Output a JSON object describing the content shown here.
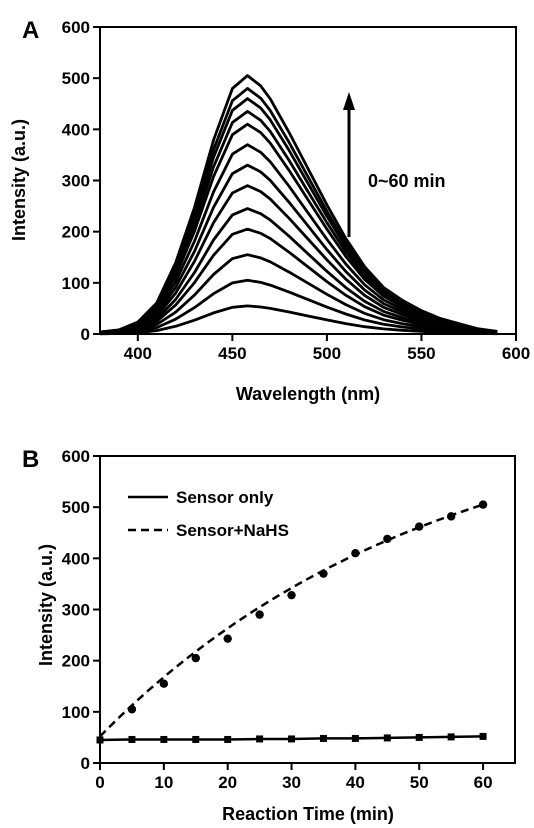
{
  "chart_data": [
    {
      "panel": "A",
      "type": "line",
      "xlabel": "Wavelength (nm)",
      "ylabel": "Intensity (a.u.)",
      "xlim": [
        380,
        600
      ],
      "ylim": [
        0,
        600
      ],
      "xticks": [
        400,
        450,
        500,
        550,
        600
      ],
      "yticks": [
        0,
        100,
        200,
        300,
        400,
        500,
        600
      ],
      "annotation": "0~60 min",
      "x": [
        380,
        390,
        400,
        410,
        420,
        430,
        440,
        450,
        458,
        465,
        470,
        480,
        490,
        500,
        510,
        520,
        530,
        540,
        550,
        560,
        570,
        580,
        590
      ],
      "series": [
        {
          "peak": 55,
          "values": [
            0.4,
            0.9,
            2.5,
            6.6,
            15.1,
            27.0,
            41.3,
            52.2,
            55.0,
            52.8,
            50.1,
            42.9,
            35.2,
            27.5,
            20.4,
            14.3,
            9.9,
            7.2,
            5.0,
            3.3,
            2.2,
            1.1,
            0.6
          ]
        },
        {
          "peak": 105,
          "values": [
            0.8,
            1.7,
            4.8,
            12.6,
            28.9,
            51.5,
            78.8,
            99.8,
            105.0,
            100.8,
            95.6,
            81.9,
            67.2,
            52.5,
            39.0,
            27.3,
            18.9,
            13.7,
            9.5,
            6.3,
            4.2,
            2.1,
            1.1
          ]
        },
        {
          "peak": 155,
          "values": [
            1.2,
            2.5,
            7.1,
            18.6,
            42.6,
            76.0,
            116.3,
            147.3,
            155.0,
            148.8,
            141.1,
            120.9,
            99.2,
            77.5,
            57.4,
            40.3,
            27.9,
            20.2,
            14.0,
            9.3,
            6.2,
            3.1,
            1.6
          ]
        },
        {
          "peak": 205,
          "values": [
            1.6,
            3.3,
            9.4,
            24.6,
            56.4,
            100.5,
            153.8,
            194.8,
            205.0,
            196.8,
            186.6,
            159.9,
            131.2,
            102.5,
            75.9,
            53.3,
            36.9,
            26.7,
            18.5,
            12.3,
            8.2,
            4.1,
            2.1
          ]
        },
        {
          "peak": 245,
          "values": [
            2.0,
            3.9,
            11.3,
            29.4,
            67.4,
            120.1,
            183.8,
            232.8,
            245.0,
            235.2,
            223.0,
            191.1,
            156.8,
            122.5,
            90.7,
            63.7,
            44.1,
            31.9,
            22.1,
            14.7,
            9.8,
            4.9,
            2.5
          ]
        },
        {
          "peak": 290,
          "values": [
            2.3,
            4.6,
            13.3,
            34.8,
            79.8,
            142.1,
            217.5,
            275.5,
            290.0,
            278.4,
            263.9,
            226.2,
            185.6,
            145.0,
            107.3,
            75.4,
            52.2,
            37.7,
            26.1,
            17.4,
            11.6,
            5.8,
            2.9
          ]
        },
        {
          "peak": 330,
          "values": [
            2.6,
            5.3,
            15.2,
            39.6,
            90.8,
            161.7,
            247.5,
            313.5,
            330.0,
            316.8,
            300.3,
            257.4,
            211.2,
            165.0,
            122.1,
            85.8,
            59.4,
            42.9,
            29.7,
            19.8,
            13.2,
            6.6,
            3.3
          ]
        },
        {
          "peak": 370,
          "values": [
            3.0,
            5.9,
            17.0,
            44.4,
            101.8,
            181.3,
            277.5,
            351.5,
            370.0,
            355.2,
            336.7,
            288.6,
            236.8,
            185.0,
            136.9,
            96.2,
            66.6,
            48.1,
            33.3,
            22.2,
            14.8,
            7.4,
            3.7
          ]
        },
        {
          "peak": 410,
          "values": [
            3.3,
            6.6,
            18.9,
            49.2,
            112.8,
            200.9,
            307.5,
            389.5,
            410.0,
            393.6,
            373.1,
            319.8,
            262.4,
            205.0,
            151.7,
            106.6,
            73.8,
            53.3,
            36.9,
            24.6,
            16.4,
            8.2,
            4.1
          ]
        },
        {
          "peak": 435,
          "values": [
            3.5,
            7.0,
            20.0,
            52.2,
            119.6,
            213.2,
            326.3,
            413.3,
            435.0,
            417.6,
            395.9,
            339.3,
            278.4,
            217.5,
            161.0,
            113.1,
            78.3,
            56.6,
            39.2,
            26.1,
            17.4,
            8.7,
            4.4
          ]
        },
        {
          "peak": 460,
          "values": [
            3.7,
            7.4,
            21.2,
            55.2,
            126.5,
            225.4,
            345.0,
            437.0,
            460.0,
            441.6,
            418.6,
            358.8,
            294.4,
            230.0,
            170.2,
            119.6,
            82.8,
            59.8,
            41.4,
            27.6,
            18.4,
            9.2,
            4.6
          ]
        },
        {
          "peak": 480,
          "values": [
            3.8,
            7.7,
            22.1,
            57.6,
            132.0,
            235.2,
            360.0,
            456.0,
            480.0,
            460.8,
            436.8,
            374.4,
            307.2,
            240.0,
            177.6,
            124.8,
            86.4,
            62.4,
            43.2,
            28.8,
            19.2,
            9.6,
            4.8
          ]
        },
        {
          "peak": 505,
          "values": [
            4.0,
            8.1,
            23.2,
            60.6,
            138.9,
            247.5,
            378.8,
            479.8,
            505.0,
            484.8,
            459.6,
            393.9,
            323.2,
            252.5,
            186.9,
            131.3,
            90.9,
            65.7,
            45.5,
            30.3,
            20.2,
            10.1,
            5.1
          ]
        }
      ]
    },
    {
      "panel": "B",
      "type": "scatter",
      "xlabel": "Reaction Time (min)",
      "ylabel": "Intensity (a.u.)",
      "xlim": [
        0,
        65
      ],
      "ylim": [
        0,
        600
      ],
      "xticks": [
        0,
        10,
        20,
        30,
        40,
        50,
        60
      ],
      "yticks": [
        0,
        100,
        200,
        300,
        400,
        500,
        600
      ],
      "legend_position": "top-left",
      "series": [
        {
          "name": "Sensor only",
          "line": "solid",
          "marker": "square",
          "x": [
            0,
            5,
            10,
            15,
            20,
            25,
            30,
            35,
            40,
            45,
            50,
            55,
            60
          ],
          "values": [
            45,
            46,
            46,
            46,
            46,
            47,
            47,
            48,
            48,
            49,
            50,
            51,
            52
          ]
        },
        {
          "name": "Sensor+NaHS",
          "line": "dashed",
          "marker": "circle",
          "x": [
            0,
            5,
            10,
            15,
            20,
            25,
            30,
            35,
            40,
            45,
            50,
            55,
            60
          ],
          "values": [
            50,
            105,
            155,
            205,
            243,
            290,
            328,
            370,
            410,
            438,
            462,
            482,
            505
          ]
        }
      ]
    }
  ]
}
